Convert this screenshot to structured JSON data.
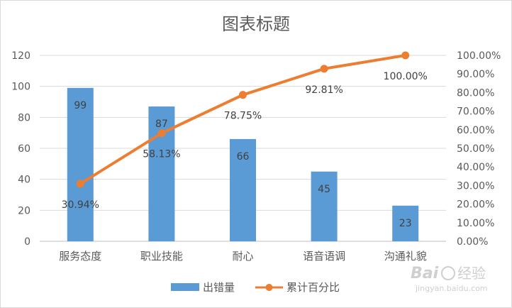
{
  "chart_data": {
    "type": "bar",
    "title": "图表标题",
    "categories": [
      "服务态度",
      "职业技能",
      "耐心",
      "语音语调",
      "沟通礼貌"
    ],
    "series": [
      {
        "name": "出错量",
        "type": "bar",
        "axis": "left",
        "color": "#5b9bd5",
        "values": [
          99,
          87,
          66,
          45,
          23
        ],
        "labels": [
          "99",
          "87",
          "66",
          "45",
          "23"
        ]
      },
      {
        "name": "累计百分比",
        "type": "line",
        "axis": "right",
        "color": "#ed7d31",
        "values": [
          30.94,
          58.13,
          78.75,
          92.81,
          100.0
        ],
        "labels": [
          "30.94%",
          "58.13%",
          "78.75%",
          "92.81%",
          "100.00%"
        ]
      }
    ],
    "y_left": {
      "min": 0,
      "max": 120,
      "ticks": [
        "0",
        "20",
        "40",
        "60",
        "80",
        "100",
        "120"
      ]
    },
    "y_right": {
      "min": 0,
      "max": 100,
      "ticks": [
        "0.00%",
        "10.00%",
        "20.00%",
        "30.00%",
        "40.00%",
        "50.00%",
        "60.00%",
        "70.00%",
        "80.00%",
        "90.00%",
        "100.00%"
      ]
    },
    "grid": true,
    "legend": "bottom"
  },
  "watermark": {
    "brand": "Bai",
    "brand2": "经验",
    "url": "jingyan.baidu.com"
  }
}
